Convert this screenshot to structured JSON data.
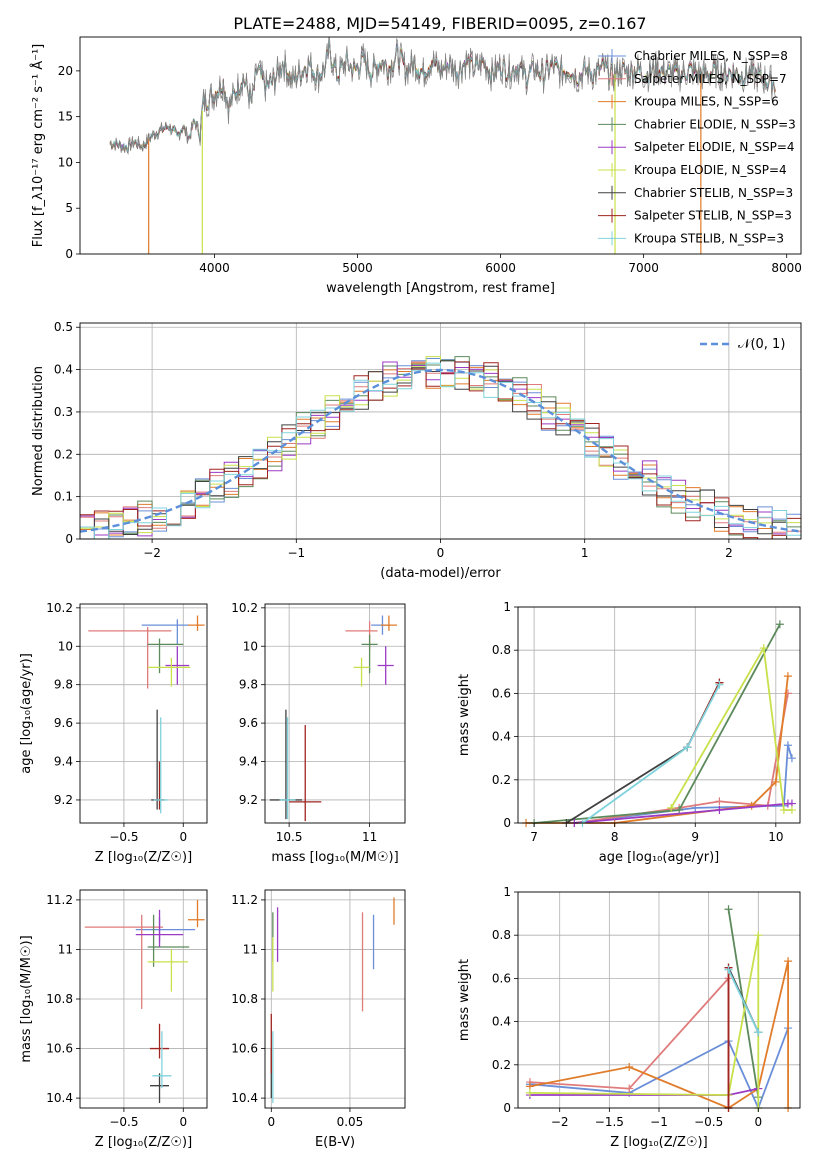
{
  "chart_data": [
    {
      "id": "spectrum",
      "type": "line",
      "title": "PLATE=2488, MJD=54149, FIBERID=0095, z=0.167",
      "xlabel": "wavelength [Angstrom, rest frame]",
      "ylabel": "Flux [f_λ10⁻¹⁷ erg cm⁻² s⁻¹ Å⁻¹]",
      "xlim": [
        3060,
        8100
      ],
      "ylim": [
        0,
        23.7
      ],
      "xticks": [
        4000,
        5000,
        6000,
        7000,
        8000
      ],
      "yticks": [
        0,
        5,
        10,
        15,
        20
      ],
      "observed": {
        "name": "",
        "color": "#808080",
        "x": [
          3270,
          3320,
          3380,
          3440,
          3500,
          3560,
          3620,
          3680,
          3740,
          3780,
          3820,
          3860,
          3900,
          3920,
          3960,
          4000,
          4060,
          4100,
          4150,
          4200,
          4260,
          4300,
          4360,
          4420,
          4480,
          4540,
          4600,
          4660,
          4720,
          4780,
          4800,
          4860,
          4920,
          4980,
          5040,
          5100,
          5160,
          5220,
          5280,
          5340,
          5400,
          5460,
          5520,
          5580,
          5640,
          5700,
          5760,
          5820,
          5880,
          5940,
          6000,
          6060,
          6120,
          6180,
          6240,
          6300,
          6360,
          6420,
          6480,
          6540,
          6600,
          6660,
          6720,
          6780,
          6840,
          6900,
          6960,
          7020,
          7080,
          7140,
          7200,
          7260,
          7320,
          7380,
          7440,
          7500,
          7560,
          7620,
          7680,
          7740,
          7800,
          7860,
          7920
        ],
        "y": [
          12.1,
          12.0,
          11.6,
          12.2,
          11.8,
          12.9,
          13.5,
          14.0,
          12.8,
          13.9,
          12.6,
          14.5,
          13.2,
          16.5,
          17.0,
          17.5,
          18.8,
          16.0,
          17.8,
          19.3,
          16.5,
          20.2,
          18.2,
          19.0,
          21.0,
          18.8,
          19.9,
          20.8,
          19.3,
          20.5,
          22.3,
          19.5,
          21.0,
          20.0,
          21.3,
          19.8,
          21.0,
          20.3,
          21.8,
          20.1,
          20.9,
          19.7,
          21.2,
          20.0,
          20.8,
          19.9,
          21.1,
          20.2,
          21.0,
          19.6,
          20.6,
          19.9,
          20.5,
          19.3,
          20.3,
          19.5,
          20.6,
          19.8,
          20.2,
          19.3,
          20.0,
          19.6,
          20.4,
          19.4,
          20.1,
          19.8,
          20.2,
          19.5,
          20.3,
          19.9,
          19.8,
          19.6,
          20.1,
          19.7,
          19.5,
          20.0,
          19.6,
          19.9,
          19.5,
          19.7,
          19.4,
          19.0,
          18.6
        ]
      },
      "series": [
        {
          "name": "Chabrier MILES, N_SSP=8",
          "color": "#6a8fd8"
        },
        {
          "name": "Salpeter MILES, N_SSP=7",
          "color": "#e07b7b"
        },
        {
          "name": "Kroupa MILES, N_SSP=6",
          "color": "#e07c2a"
        },
        {
          "name": "Chabrier ELODIE, N_SSP=3",
          "color": "#5c8a5c"
        },
        {
          "name": "Salpeter ELODIE, N_SSP=4",
          "color": "#9b3bc4"
        },
        {
          "name": "Kroupa ELODIE, N_SSP=4",
          "color": "#c8e04a"
        },
        {
          "name": "Chabrier STELIB, N_SSP=3",
          "color": "#404040"
        },
        {
          "name": "Salpeter STELIB, N_SSP=3",
          "color": "#a0241f"
        },
        {
          "name": "Kroupa STELIB, N_SSP=3",
          "color": "#7fd3dc"
        }
      ],
      "drop_lines": [
        {
          "x": 3540,
          "color": "#e07c2a"
        },
        {
          "x": 3915,
          "color": "#c8e04a"
        },
        {
          "x": 6800,
          "color": "#c8e04a"
        },
        {
          "x": 7400,
          "color": "#e07c2a"
        }
      ],
      "legend_position": "top-right",
      "grid": false
    },
    {
      "id": "residuals",
      "type": "histogram",
      "xlabel": "(data-model)/error",
      "ylabel": "Normed distribution",
      "xlim": [
        -2.5,
        2.5
      ],
      "ylim": [
        0,
        0.51
      ],
      "xticks": [
        -2,
        -1,
        0,
        1,
        2
      ],
      "yticks": [
        0.0,
        0.1,
        0.2,
        0.3,
        0.4,
        0.5
      ],
      "grid": true,
      "bin_width": 0.1,
      "reference": {
        "name": "𝒩(0, 1)",
        "color": "#5b8fd9",
        "style": "dashed"
      },
      "legend_position": "top-right"
    },
    {
      "id": "age_vs_Z",
      "type": "scatter",
      "xlabel": "Z [log₁₀(Z/Z☉)]",
      "ylabel": "age  [log₁₀(age/yr)]",
      "xlim": [
        -0.87,
        0.2
      ],
      "ylim": [
        9.08,
        10.22
      ],
      "xticks": [
        -0.5,
        0.0
      ],
      "yticks": [
        9.2,
        9.4,
        9.6,
        9.8,
        10.0,
        10.2
      ],
      "grid": true,
      "points": [
        {
          "color": "#6a8fd8",
          "x": -0.05,
          "xerr": [
            0.3,
            0.1
          ],
          "y": 10.11,
          "yerr": [
            0.1,
            0.03
          ]
        },
        {
          "color": "#e07b7b",
          "x": -0.3,
          "xerr": [
            0.5,
            0.2
          ],
          "y": 10.08,
          "yerr": [
            0.3,
            0.02
          ]
        },
        {
          "color": "#e07c2a",
          "x": 0.12,
          "xerr": [
            0.08,
            0.06
          ],
          "y": 10.11,
          "yerr": [
            0.03,
            0.05
          ]
        },
        {
          "color": "#5c8a5c",
          "x": -0.2,
          "xerr": [
            0.1,
            0.2
          ],
          "y": 10.01,
          "yerr": [
            0.15,
            0.03
          ]
        },
        {
          "color": "#9b3bc4",
          "x": -0.05,
          "xerr": [
            0.1,
            0.1
          ],
          "y": 9.9,
          "yerr": [
            0.1,
            0.1
          ]
        },
        {
          "color": "#c8e04a",
          "x": -0.1,
          "xerr": [
            0.2,
            0.16
          ],
          "y": 9.89,
          "yerr": [
            0.1,
            0.05
          ]
        },
        {
          "color": "#404040",
          "x": -0.22,
          "xerr": [
            0.05,
            0.05
          ],
          "y": 9.2,
          "yerr": [
            0.05,
            0.47
          ]
        },
        {
          "color": "#a0241f",
          "x": -0.2,
          "xerr": [
            0.05,
            0.05
          ],
          "y": 9.2,
          "yerr": [
            0.05,
            0.2
          ]
        },
        {
          "color": "#7fd3dc",
          "x": -0.19,
          "xerr": [
            0.06,
            0.06
          ],
          "y": 9.2,
          "yerr": [
            0.07,
            0.43
          ]
        }
      ]
    },
    {
      "id": "age_vs_mass",
      "type": "scatter",
      "xlabel": "mass [log₁₀(M/M☉)]",
      "ylabel": "",
      "xlim": [
        10.35,
        11.22
      ],
      "ylim": [
        9.08,
        10.22
      ],
      "xticks": [
        10.5,
        11.0
      ],
      "yticks": [
        9.2,
        9.4,
        9.6,
        9.8,
        10.0,
        10.2
      ],
      "grid": true,
      "points": [
        {
          "color": "#6a8fd8",
          "x": 11.08,
          "xerr": [
            0.07,
            0.05
          ],
          "y": 10.11,
          "yerr": [
            0.05,
            0.05
          ]
        },
        {
          "color": "#e07b7b",
          "x": 11.0,
          "xerr": [
            0.15,
            0.05
          ],
          "y": 10.08,
          "yerr": [
            0.1,
            0.05
          ]
        },
        {
          "color": "#e07c2a",
          "x": 11.12,
          "xerr": [
            0.05,
            0.05
          ],
          "y": 10.11,
          "yerr": [
            0.03,
            0.05
          ]
        },
        {
          "color": "#5c8a5c",
          "x": 11.0,
          "xerr": [
            0.05,
            0.05
          ],
          "y": 10.01,
          "yerr": [
            0.15,
            0.05
          ]
        },
        {
          "color": "#9b3bc4",
          "x": 11.1,
          "xerr": [
            0.05,
            0.05
          ],
          "y": 9.9,
          "yerr": [
            0.1,
            0.1
          ]
        },
        {
          "color": "#c8e04a",
          "x": 10.95,
          "xerr": [
            0.05,
            0.05
          ],
          "y": 9.89,
          "yerr": [
            0.1,
            0.05
          ]
        },
        {
          "color": "#404040",
          "x": 10.48,
          "xerr": [
            0.1,
            0.1
          ],
          "y": 9.2,
          "yerr": [
            0.1,
            0.47
          ]
        },
        {
          "color": "#a0241f",
          "x": 10.6,
          "xerr": [
            0.1,
            0.1
          ],
          "y": 9.19,
          "yerr": [
            0.1,
            0.4
          ]
        },
        {
          "color": "#7fd3dc",
          "x": 10.49,
          "xerr": [
            0.05,
            0.05
          ],
          "y": 9.2,
          "yerr": [
            0.1,
            0.43
          ]
        }
      ]
    },
    {
      "id": "weight_vs_age",
      "type": "line",
      "xlabel": "age  [log₁₀(age/yr)]",
      "ylabel": "mass weight",
      "xlim": [
        6.8,
        10.3
      ],
      "ylim": [
        0,
        1.0
      ],
      "xticks": [
        7,
        8,
        9,
        10
      ],
      "yticks": [
        0.0,
        0.2,
        0.4,
        0.6,
        0.8,
        1.0
      ],
      "grid": true,
      "series": [
        {
          "color": "#6a8fd8",
          "x": [
            7.5,
            9.0,
            10.1,
            10.15,
            10.2
          ],
          "y": [
            0.0,
            0.07,
            0.08,
            0.36,
            0.3
          ]
        },
        {
          "color": "#e07b7b",
          "x": [
            7.5,
            8.8,
            9.3,
            9.9,
            10.15
          ],
          "y": [
            0.0,
            0.07,
            0.1,
            0.08,
            0.6
          ]
        },
        {
          "color": "#e07c2a",
          "x": [
            6.9,
            8.0,
            9.7,
            10.0,
            10.15
          ],
          "y": [
            0.0,
            0.0,
            0.08,
            0.19,
            0.68
          ]
        },
        {
          "color": "#5c8a5c",
          "x": [
            7.0,
            8.8,
            10.05
          ],
          "y": [
            0.0,
            0.06,
            0.92
          ]
        },
        {
          "color": "#9b3bc4",
          "x": [
            7.5,
            9.3,
            10.15,
            10.2
          ],
          "y": [
            0.0,
            0.06,
            0.09,
            0.09
          ]
        },
        {
          "color": "#c8e04a",
          "x": [
            8.7,
            9.85,
            10.1,
            10.2
          ],
          "y": [
            0.07,
            0.81,
            0.06,
            0.06
          ]
        },
        {
          "color": "#404040",
          "x": [
            7.4,
            8.9,
            9.3
          ],
          "y": [
            0.0,
            0.35,
            0.65
          ]
        },
        {
          "color": "#a0241f",
          "x": [
            8.9,
            9.3
          ],
          "y": [
            0.35,
            0.65
          ]
        },
        {
          "color": "#7fd3dc",
          "x": [
            7.6,
            8.9,
            9.3
          ],
          "y": [
            0.0,
            0.35,
            0.64
          ]
        }
      ]
    },
    {
      "id": "mass_vs_Z",
      "type": "scatter",
      "xlabel": "Z [log₁₀(Z/Z☉)]",
      "ylabel": "mass [log₁₀(M/M☉)]",
      "xlim": [
        -0.87,
        0.2
      ],
      "ylim": [
        10.36,
        11.24
      ],
      "xticks": [
        -0.5,
        0.0
      ],
      "yticks": [
        10.4,
        10.6,
        10.8,
        11.0,
        11.2
      ],
      "grid": true,
      "points": [
        {
          "color": "#6a8fd8",
          "x": -0.2,
          "xerr": [
            0.2,
            0.3
          ],
          "y": 11.08,
          "yerr": [
            0.05,
            0.05
          ]
        },
        {
          "color": "#e07b7b",
          "x": -0.35,
          "xerr": [
            0.48,
            0.18
          ],
          "y": 11.09,
          "yerr": [
            0.33,
            0.05
          ]
        },
        {
          "color": "#e07c2a",
          "x": 0.12,
          "xerr": [
            0.08,
            0.06
          ],
          "y": 11.12,
          "yerr": [
            0.03,
            0.08
          ]
        },
        {
          "color": "#5c8a5c",
          "x": -0.25,
          "xerr": [
            0.05,
            0.3
          ],
          "y": 11.01,
          "yerr": [
            0.08,
            0.13
          ]
        },
        {
          "color": "#9b3bc4",
          "x": -0.2,
          "xerr": [
            0.2,
            0.2
          ],
          "y": 11.06,
          "yerr": [
            0.05,
            0.1
          ]
        },
        {
          "color": "#c8e04a",
          "x": -0.1,
          "xerr": [
            0.2,
            0.14
          ],
          "y": 10.95,
          "yerr": [
            0.12,
            0.05
          ]
        },
        {
          "color": "#404040",
          "x": -0.2,
          "xerr": [
            0.08,
            0.08
          ],
          "y": 10.45,
          "yerr": [
            0.07,
            0.05
          ]
        },
        {
          "color": "#a0241f",
          "x": -0.2,
          "xerr": [
            0.08,
            0.08
          ],
          "y": 10.6,
          "yerr": [
            0.04,
            0.1
          ]
        },
        {
          "color": "#7fd3dc",
          "x": -0.18,
          "xerr": [
            0.08,
            0.08
          ],
          "y": 10.49,
          "yerr": [
            0.05,
            0.18
          ]
        }
      ]
    },
    {
      "id": "mass_vs_ebv",
      "type": "scatter",
      "xlabel": "E(B-V)",
      "ylabel": "",
      "xlim": [
        -0.004,
        0.085
      ],
      "ylim": [
        10.36,
        11.24
      ],
      "xticks": [
        0.0,
        0.05
      ],
      "yticks": [
        10.4,
        10.6,
        10.8,
        11.0,
        11.2
      ],
      "grid": true,
      "points": [
        {
          "color": "#6a8fd8",
          "x": 0.065,
          "y": 11.02,
          "yerr": [
            0.1,
            0.12
          ]
        },
        {
          "color": "#e07b7b",
          "x": 0.058,
          "y": 11.05,
          "yerr": [
            0.3,
            0.1
          ]
        },
        {
          "color": "#e07c2a",
          "x": 0.078,
          "y": 11.15,
          "yerr": [
            0.05,
            0.06
          ]
        },
        {
          "color": "#5c8a5c",
          "x": 0.001,
          "y": 11.05,
          "yerr": [
            0.1,
            0.1
          ]
        },
        {
          "color": "#9b3bc4",
          "x": 0.004,
          "y": 11.07,
          "yerr": [
            0.12,
            0.1
          ]
        },
        {
          "color": "#c8e04a",
          "x": 0.001,
          "y": 10.95,
          "yerr": [
            0.12,
            0.1
          ]
        },
        {
          "color": "#404040",
          "x": 0.0,
          "y": 10.5,
          "yerr": [
            0.1,
            0.1
          ]
        },
        {
          "color": "#a0241f",
          "x": 0.0,
          "y": 10.6,
          "yerr": [
            0.1,
            0.14
          ]
        },
        {
          "color": "#7fd3dc",
          "x": 0.001,
          "y": 10.5,
          "yerr": [
            0.12,
            0.17
          ]
        }
      ]
    },
    {
      "id": "weight_vs_Z",
      "type": "line",
      "xlabel": "Z [log₁₀(Z/Z☉)]",
      "ylabel": "mass weight",
      "xlim": [
        -2.42,
        0.42
      ],
      "ylim": [
        0,
        1.0
      ],
      "xticks": [
        -2.0,
        -1.5,
        -1.0,
        -0.5,
        0.0
      ],
      "yticks": [
        0.0,
        0.2,
        0.4,
        0.6,
        0.8,
        1.0
      ],
      "grid": true,
      "series": [
        {
          "color": "#6a8fd8",
          "x": [
            -2.3,
            -1.3,
            -0.3,
            0.0,
            0.3
          ],
          "y": [
            0.11,
            0.07,
            0.31,
            0.0,
            0.37
          ]
        },
        {
          "color": "#e07b7b",
          "x": [
            -2.3,
            -1.3,
            -0.3,
            -0.3
          ],
          "y": [
            0.12,
            0.09,
            0.6,
            0.0
          ]
        },
        {
          "color": "#e07c2a",
          "x": [
            -2.3,
            -1.3,
            -0.3,
            0.0,
            0.3,
            0.3
          ],
          "y": [
            0.1,
            0.19,
            0.0,
            0.09,
            0.68,
            0.0
          ]
        },
        {
          "color": "#5c8a5c",
          "x": [
            -0.3,
            0.0
          ],
          "y": [
            0.92,
            0.05
          ]
        },
        {
          "color": "#9b3bc4",
          "x": [
            -2.3,
            -0.3,
            0.0
          ],
          "y": [
            0.06,
            0.06,
            0.09
          ]
        },
        {
          "color": "#c8e04a",
          "x": [
            -2.3,
            -0.3,
            0.0,
            0.0
          ],
          "y": [
            0.07,
            0.06,
            0.8,
            0.0
          ]
        },
        {
          "color": "#404040",
          "x": [
            -0.3,
            0.0
          ],
          "y": [
            0.65,
            0.35
          ]
        },
        {
          "color": "#a0241f",
          "x": [
            -0.3,
            -0.3
          ],
          "y": [
            0.65,
            0.0
          ]
        },
        {
          "color": "#7fd3dc",
          "x": [
            -0.3,
            0.0
          ],
          "y": [
            0.64,
            0.35
          ]
        }
      ]
    }
  ]
}
